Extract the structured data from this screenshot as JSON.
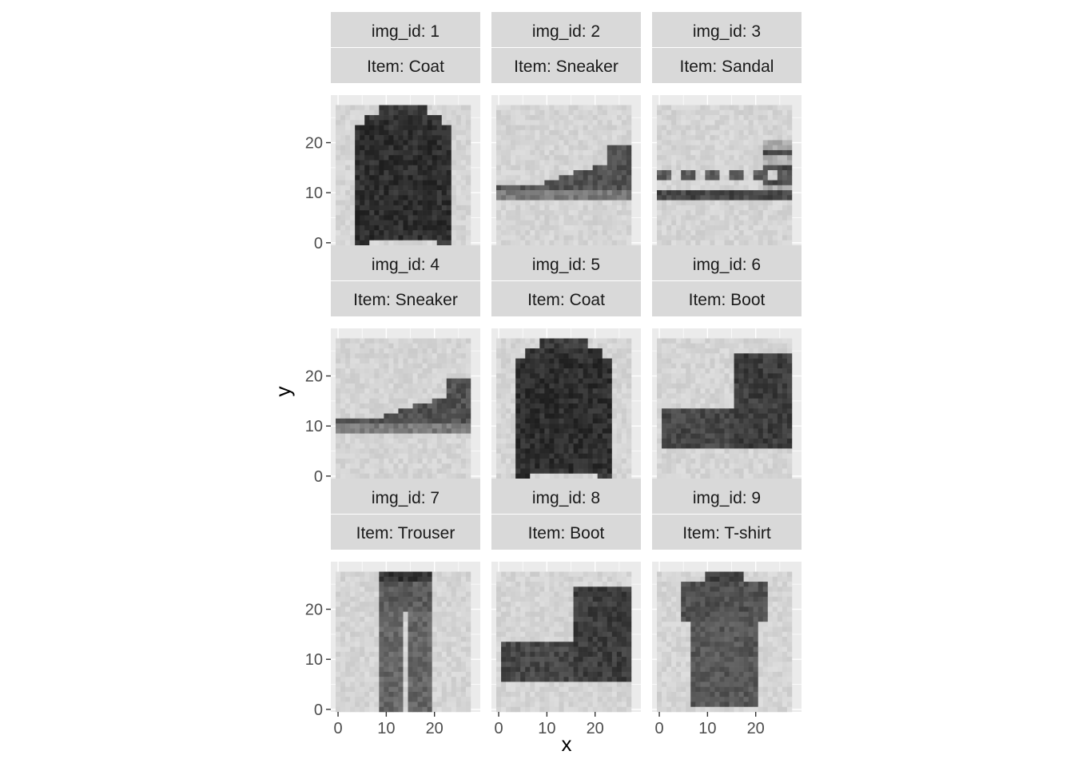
{
  "chart_data": {
    "type": "heatmap",
    "xlabel": "x",
    "ylabel": "y",
    "xlim": [
      0,
      28
    ],
    "ylim": [
      0,
      28
    ],
    "x_ticks": [
      0,
      10,
      20
    ],
    "y_ticks": [
      0,
      10,
      20
    ],
    "grid": true,
    "colormap": "grayscale (white = 0, black = max intensity)",
    "facet_rows": 3,
    "facet_cols": 3,
    "panels": [
      {
        "img_id_label": "img_id: 1",
        "item_label": "Item: Coat",
        "shape": {
          "kind": "coat",
          "x0": 5,
          "x1": 24,
          "y0": 1,
          "y1": 28
        }
      },
      {
        "img_id_label": "img_id: 2",
        "item_label": "Item: Sneaker",
        "shape": {
          "kind": "sneaker",
          "x0": 0,
          "x1": 28,
          "y0": 9,
          "y1": 20
        }
      },
      {
        "img_id_label": "img_id: 3",
        "item_label": "Item: Sandal",
        "shape": {
          "kind": "sandal",
          "x0": 0,
          "x1": 28,
          "y0": 9,
          "y1": 20
        }
      },
      {
        "img_id_label": "img_id: 4",
        "item_label": "Item: Sneaker",
        "shape": {
          "kind": "sneaker",
          "x0": 0,
          "x1": 28,
          "y0": 9,
          "y1": 18
        }
      },
      {
        "img_id_label": "img_id: 5",
        "item_label": "Item: Coat",
        "shape": {
          "kind": "coat",
          "x0": 3,
          "x1": 25,
          "y0": 0,
          "y1": 28
        }
      },
      {
        "img_id_label": "img_id: 6",
        "item_label": "Item: Boot",
        "shape": {
          "kind": "boot",
          "x0": 0,
          "x1": 28,
          "y0": 6,
          "y1": 24
        }
      },
      {
        "img_id_label": "img_id: 7",
        "item_label": "Item: Trouser",
        "shape": {
          "kind": "trouser",
          "x0": 8,
          "x1": 20,
          "y0": 0,
          "y1": 28
        }
      },
      {
        "img_id_label": "img_id: 8",
        "item_label": "Item: Boot",
        "shape": {
          "kind": "boot",
          "x0": 0,
          "x1": 28,
          "y0": 5,
          "y1": 25
        }
      },
      {
        "img_id_label": "img_id: 9",
        "item_label": "Item: T-shirt",
        "shape": {
          "kind": "tshirt",
          "x0": 6,
          "x1": 23,
          "y0": 1,
          "y1": 28
        }
      }
    ]
  },
  "colors": {
    "panel_background": "#ebebeb",
    "strip_background": "#d9d9d9",
    "grid_line": "#ffffff",
    "axis_text": "#4d4d4d",
    "title_text": "#000000"
  }
}
